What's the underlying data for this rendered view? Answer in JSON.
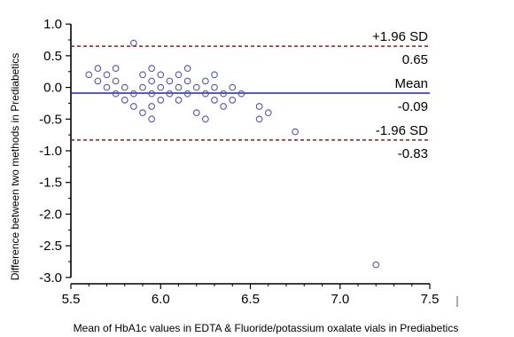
{
  "chart_data": {
    "type": "scatter",
    "title": "",
    "xlabel": "Mean of HbA1c values in EDTA & Fluoride/potassium oxalate vials in Prediabetics",
    "ylabel": "Difference between two methods in Prediabetics",
    "xlim": [
      5.5,
      7.5
    ],
    "ylim": [
      -3.1,
      1.1
    ],
    "x_ticks": [
      "5.5",
      "6.0",
      "6.5",
      "7.0",
      "7.5"
    ],
    "y_ticks": [
      "1.0",
      "0.5",
      "0.0",
      "-0.5",
      "-1.0",
      "-1.5",
      "-2.0",
      "-2.5",
      "-3.0"
    ],
    "x_tick_values": [
      5.5,
      6.0,
      6.5,
      7.0,
      7.5
    ],
    "y_tick_values": [
      1.0,
      0.5,
      0.0,
      -0.5,
      -1.0,
      -1.5,
      -2.0,
      -2.5,
      -3.0
    ],
    "grid": false,
    "legend": "none",
    "colors": {
      "points": "#5555aa",
      "mean_line": "#2222aa",
      "sd_line": "#8b1a1a",
      "axis": "#000000"
    },
    "reference_lines": [
      {
        "name": "upper_loa",
        "label": "+1.96 SD",
        "value_label": "0.65",
        "y": 0.65,
        "style": "dashed"
      },
      {
        "name": "mean",
        "label": "Mean",
        "value_label": "-0.09",
        "y": -0.09,
        "style": "solid"
      },
      {
        "name": "lower_loa",
        "label": "-1.96 SD",
        "value_label": "-0.83",
        "y": -0.83,
        "style": "dashed"
      }
    ],
    "points": [
      {
        "x": 5.6,
        "y": 0.2
      },
      {
        "x": 5.65,
        "y": 0.3
      },
      {
        "x": 5.65,
        "y": 0.1
      },
      {
        "x": 5.7,
        "y": 0.2
      },
      {
        "x": 5.7,
        "y": 0.0
      },
      {
        "x": 5.75,
        "y": 0.3
      },
      {
        "x": 5.75,
        "y": 0.1
      },
      {
        "x": 5.75,
        "y": -0.1
      },
      {
        "x": 5.8,
        "y": 0.0
      },
      {
        "x": 5.8,
        "y": -0.2
      },
      {
        "x": 5.85,
        "y": 0.7
      },
      {
        "x": 5.85,
        "y": -0.1
      },
      {
        "x": 5.85,
        "y": -0.3
      },
      {
        "x": 5.9,
        "y": 0.2
      },
      {
        "x": 5.9,
        "y": 0.0
      },
      {
        "x": 5.9,
        "y": -0.4
      },
      {
        "x": 5.95,
        "y": 0.3
      },
      {
        "x": 5.95,
        "y": 0.1
      },
      {
        "x": 5.95,
        "y": -0.1
      },
      {
        "x": 5.95,
        "y": -0.3
      },
      {
        "x": 5.95,
        "y": -0.5
      },
      {
        "x": 6.0,
        "y": 0.2
      },
      {
        "x": 6.0,
        "y": 0.0
      },
      {
        "x": 6.0,
        "y": -0.2
      },
      {
        "x": 6.05,
        "y": 0.1
      },
      {
        "x": 6.05,
        "y": -0.1
      },
      {
        "x": 6.1,
        "y": 0.2
      },
      {
        "x": 6.1,
        "y": 0.0
      },
      {
        "x": 6.1,
        "y": -0.2
      },
      {
        "x": 6.15,
        "y": 0.3
      },
      {
        "x": 6.15,
        "y": 0.1
      },
      {
        "x": 6.15,
        "y": -0.1
      },
      {
        "x": 6.2,
        "y": 0.0
      },
      {
        "x": 6.2,
        "y": -0.4
      },
      {
        "x": 6.25,
        "y": 0.1
      },
      {
        "x": 6.25,
        "y": -0.1
      },
      {
        "x": 6.25,
        "y": -0.5
      },
      {
        "x": 6.3,
        "y": 0.2
      },
      {
        "x": 6.3,
        "y": 0.0
      },
      {
        "x": 6.3,
        "y": -0.2
      },
      {
        "x": 6.35,
        "y": -0.1
      },
      {
        "x": 6.35,
        "y": -0.3
      },
      {
        "x": 6.4,
        "y": 0.0
      },
      {
        "x": 6.4,
        "y": -0.2
      },
      {
        "x": 6.45,
        "y": -0.1
      },
      {
        "x": 6.55,
        "y": -0.3
      },
      {
        "x": 6.55,
        "y": -0.5
      },
      {
        "x": 6.6,
        "y": -0.4
      },
      {
        "x": 6.75,
        "y": -0.7
      },
      {
        "x": 7.2,
        "y": -2.8
      }
    ]
  }
}
